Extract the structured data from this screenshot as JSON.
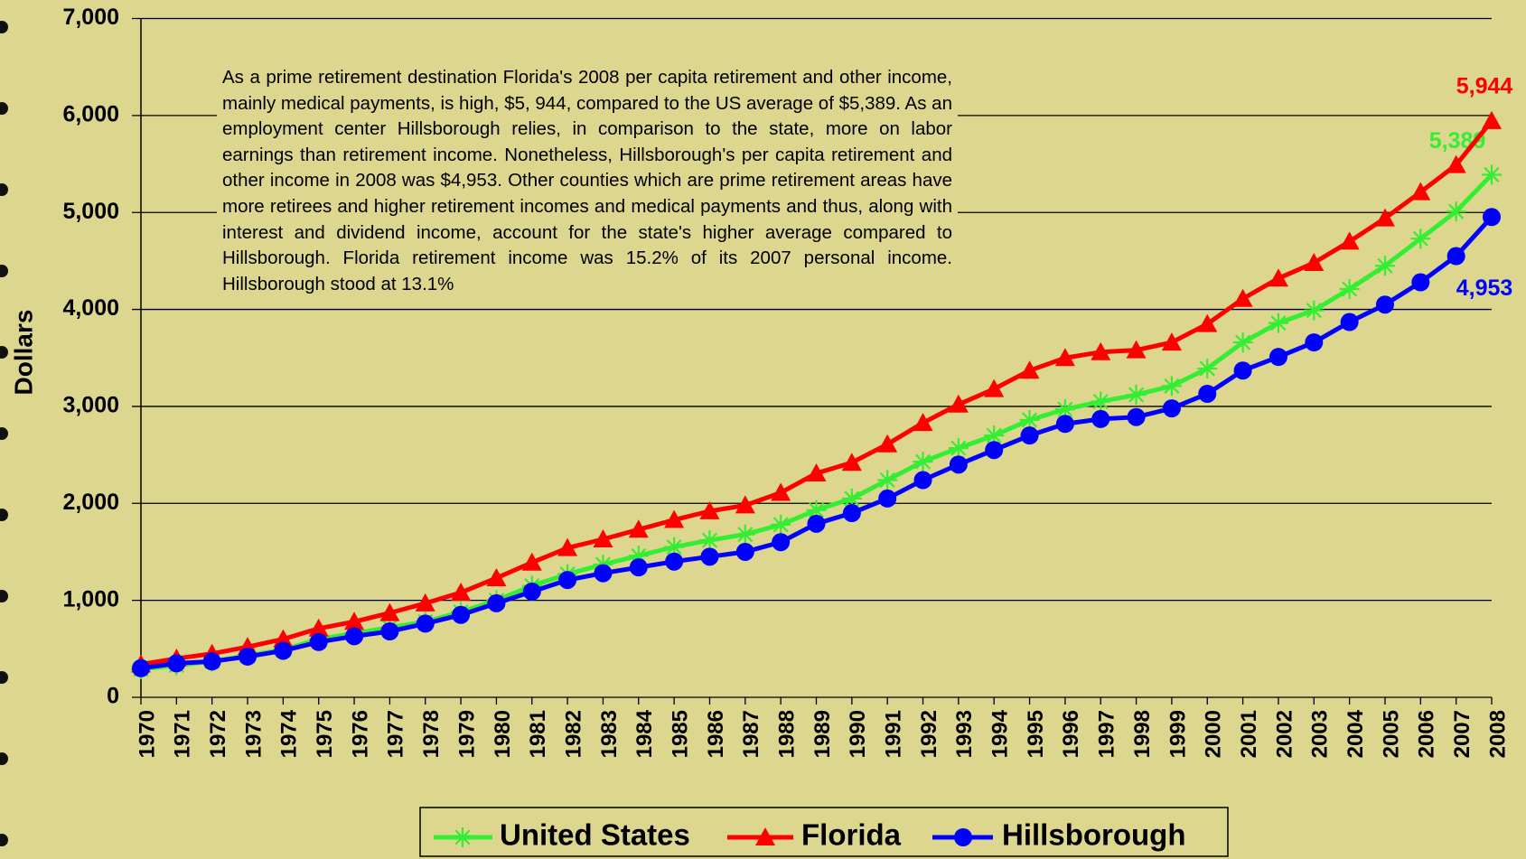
{
  "chart_data": {
    "type": "line",
    "annotation": "As a prime retirement destination Florida's 2008 per capita retirement and other income, mainly medical payments, is high, $5, 944, compared to the US average of $5,389.  As an employment center Hillsborough relies, in comparison to the state, more on labor earnings than retirement income. Nonetheless, Hillsborough's per capita retirement and other income in 2008 was $4,953.  Other counties which are prime retirement areas have more retirees and higher retirement incomes and medical payments and thus, along with interest and dividend income, account for the state's higher average compared to Hillsborough.  Florida retirement income was 15.2% of its 2007 personal income.  Hillsborough stood at 13.1%",
    "y_label": "Dollars",
    "categories": [
      "1970",
      "1971",
      "1972",
      "1973",
      "1974",
      "1975",
      "1976",
      "1977",
      "1978",
      "1979",
      "1980",
      "1981",
      "1982",
      "1983",
      "1984",
      "1985",
      "1986",
      "1987",
      "1988",
      "1989",
      "1990",
      "1991",
      "1992",
      "1993",
      "1994",
      "1995",
      "1996",
      "1997",
      "1998",
      "1999",
      "2000",
      "2001",
      "2002",
      "2003",
      "2004",
      "2005",
      "2006",
      "2007",
      "2008"
    ],
    "series": [
      {
        "name": "United States",
        "color": "#33ee33",
        "marker": "asterisk",
        "values": [
          290,
          330,
          370,
          430,
          490,
          600,
          660,
          720,
          780,
          880,
          1000,
          1150,
          1270,
          1370,
          1460,
          1550,
          1620,
          1680,
          1780,
          1930,
          2050,
          2240,
          2430,
          2570,
          2700,
          2860,
          2970,
          3050,
          3120,
          3210,
          3390,
          3660,
          3860,
          3990,
          4210,
          4450,
          4730,
          5010,
          5389
        ],
        "value_labels": [
          null,
          null,
          null,
          null,
          null,
          null,
          null,
          null,
          null,
          null,
          null,
          null,
          null,
          null,
          null,
          null,
          null,
          null,
          null,
          null,
          null,
          null,
          null,
          null,
          null,
          null,
          null,
          null,
          null,
          null,
          null,
          null,
          null,
          null,
          null,
          null,
          null,
          null,
          "5,389"
        ]
      },
      {
        "name": "Florida",
        "color": "#ff0000",
        "marker": "triangle",
        "values": [
          340,
          400,
          450,
          520,
          600,
          710,
          780,
          870,
          970,
          1080,
          1230,
          1390,
          1540,
          1630,
          1730,
          1830,
          1920,
          1980,
          2110,
          2310,
          2420,
          2610,
          2830,
          3020,
          3180,
          3370,
          3500,
          3560,
          3580,
          3660,
          3850,
          4110,
          4320,
          4480,
          4700,
          4940,
          5210,
          5490,
          5944
        ],
        "value_labels": [
          null,
          null,
          null,
          null,
          null,
          null,
          null,
          null,
          null,
          null,
          null,
          null,
          null,
          null,
          null,
          null,
          null,
          null,
          null,
          null,
          null,
          null,
          null,
          null,
          null,
          null,
          null,
          null,
          null,
          null,
          null,
          null,
          null,
          null,
          null,
          null,
          null,
          null,
          "5,944"
        ]
      },
      {
        "name": "Hillsborough",
        "color": "#0000ff",
        "marker": "circle",
        "values": [
          300,
          350,
          370,
          420,
          480,
          570,
          630,
          680,
          760,
          850,
          970,
          1090,
          1210,
          1280,
          1340,
          1400,
          1450,
          1500,
          1600,
          1790,
          1900,
          2050,
          2240,
          2400,
          2550,
          2700,
          2820,
          2870,
          2890,
          2980,
          3130,
          3370,
          3510,
          3660,
          3870,
          4050,
          4280,
          4550,
          4953
        ],
        "value_labels": [
          null,
          null,
          null,
          null,
          null,
          null,
          null,
          null,
          null,
          null,
          null,
          null,
          null,
          null,
          null,
          null,
          null,
          null,
          null,
          null,
          null,
          null,
          null,
          null,
          null,
          null,
          null,
          null,
          null,
          null,
          null,
          null,
          null,
          null,
          null,
          null,
          null,
          null,
          "4,953"
        ]
      }
    ],
    "ylim": [
      0,
      7000
    ],
    "yticks": [
      0,
      {
        "value": 1000,
        "label": "1,000"
      },
      {
        "value": 2000,
        "label": "2,000"
      },
      {
        "value": 3000,
        "label": "3,000"
      },
      {
        "value": 4000,
        "label": "4,000"
      },
      {
        "value": 5000,
        "label": "5,000"
      },
      {
        "value": 6000,
        "label": "6,000"
      },
      {
        "value": 7000,
        "label": "7,000"
      }
    ],
    "grid": true,
    "legend": "bottom"
  }
}
